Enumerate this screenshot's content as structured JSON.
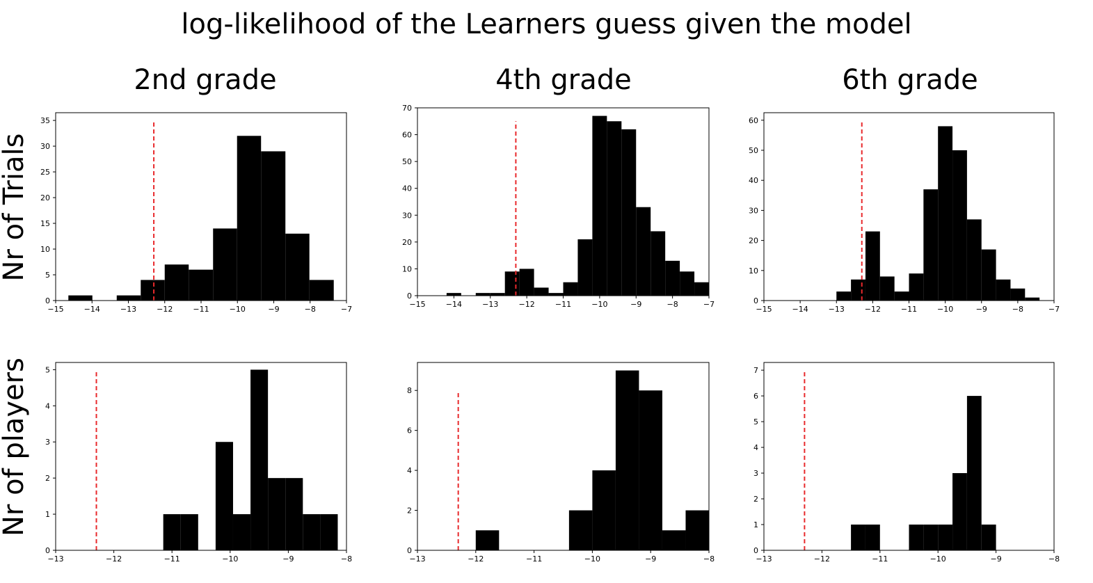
{
  "figure": {
    "title": "log-likelihood of the Learners guess given the model",
    "column_titles": [
      "2nd grade",
      "4th grade",
      "6th grade"
    ],
    "row_labels": [
      "Nr of Trials",
      "Nr of players"
    ],
    "colors": {
      "bars": "#000000",
      "reference_line": "#e8292c"
    }
  },
  "chart_data": [
    {
      "type": "bar",
      "panel": "trials-2nd-grade",
      "column_title": "2nd grade",
      "row_label": "Nr of Trials",
      "xlim": [
        -15,
        -7
      ],
      "ylim": [
        0,
        36.5
      ],
      "xticks": [
        -15,
        -14,
        -13,
        -12,
        -11,
        -10,
        -9,
        -8,
        -7
      ],
      "xtick_labels": [
        "−15",
        "−14",
        "−13",
        "−12",
        "−11",
        "−10",
        "−9",
        "−8",
        "−7"
      ],
      "yticks": [
        0,
        5,
        10,
        15,
        20,
        25,
        30,
        35
      ],
      "yticks_labels": [
        "0",
        "5",
        "10",
        "15",
        "20",
        "25",
        "30",
        "35"
      ],
      "bins": [
        {
          "x0": -14.65,
          "x1": -13.99,
          "value": 1
        },
        {
          "x0": -13.99,
          "x1": -13.32,
          "value": 0
        },
        {
          "x0": -13.32,
          "x1": -12.66,
          "value": 1
        },
        {
          "x0": -12.66,
          "x1": -12.0,
          "value": 4
        },
        {
          "x0": -12.0,
          "x1": -11.34,
          "value": 7
        },
        {
          "x0": -11.34,
          "x1": -10.67,
          "value": 6
        },
        {
          "x0": -10.67,
          "x1": -10.01,
          "value": 14
        },
        {
          "x0": -10.01,
          "x1": -9.35,
          "value": 32
        },
        {
          "x0": -9.35,
          "x1": -8.68,
          "value": 29
        },
        {
          "x0": -8.68,
          "x1": -8.02,
          "value": 13
        },
        {
          "x0": -8.02,
          "x1": -7.35,
          "value": 4
        }
      ],
      "reference_line": {
        "x": -12.3,
        "y_top": 35
      }
    },
    {
      "type": "bar",
      "panel": "trials-4th-grade",
      "column_title": "4th grade",
      "row_label": "Nr of Trials",
      "xlim": [
        -15,
        -7
      ],
      "ylim": [
        0,
        70
      ],
      "xticks": [
        -15,
        -14,
        -13,
        -12,
        -11,
        -10,
        -9,
        -8,
        -7
      ],
      "xtick_labels": [
        "−15",
        "−14",
        "−13",
        "−12",
        "−11",
        "−10",
        "−9",
        "−8",
        "−7"
      ],
      "yticks": [
        0,
        10,
        20,
        30,
        40,
        50,
        60,
        70
      ],
      "yticks_labels": [
        "0",
        "10",
        "20",
        "30",
        "40",
        "50",
        "60",
        "70"
      ],
      "bins": [
        {
          "x0": -14.2,
          "x1": -13.8,
          "value": 1
        },
        {
          "x0": -13.8,
          "x1": -13.4,
          "value": 0
        },
        {
          "x0": -13.4,
          "x1": -13.0,
          "value": 1
        },
        {
          "x0": -13.0,
          "x1": -12.6,
          "value": 1
        },
        {
          "x0": -12.6,
          "x1": -12.2,
          "value": 9
        },
        {
          "x0": -12.2,
          "x1": -11.8,
          "value": 10
        },
        {
          "x0": -11.8,
          "x1": -11.4,
          "value": 3
        },
        {
          "x0": -11.4,
          "x1": -11.0,
          "value": 1
        },
        {
          "x0": -11.0,
          "x1": -10.6,
          "value": 5
        },
        {
          "x0": -10.6,
          "x1": -10.2,
          "value": 21
        },
        {
          "x0": -10.2,
          "x1": -9.8,
          "value": 67
        },
        {
          "x0": -9.8,
          "x1": -9.4,
          "value": 65
        },
        {
          "x0": -9.4,
          "x1": -9.0,
          "value": 62
        },
        {
          "x0": -9.0,
          "x1": -8.6,
          "value": 33
        },
        {
          "x0": -8.6,
          "x1": -8.2,
          "value": 24
        },
        {
          "x0": -8.2,
          "x1": -7.8,
          "value": 13
        },
        {
          "x0": -7.8,
          "x1": -7.4,
          "value": 9
        },
        {
          "x0": -7.4,
          "x1": -7.0,
          "value": 5
        }
      ],
      "reference_line": {
        "x": -12.3,
        "y_top": 65
      }
    },
    {
      "type": "bar",
      "panel": "trials-6th-grade",
      "column_title": "6th grade",
      "row_label": "Nr of Trials",
      "xlim": [
        -15,
        -7
      ],
      "ylim": [
        0,
        62.5
      ],
      "xticks": [
        -15,
        -14,
        -13,
        -12,
        -11,
        -10,
        -9,
        -8,
        -7
      ],
      "xtick_labels": [
        "−15",
        "−14",
        "−13",
        "−12",
        "−11",
        "−10",
        "−9",
        "−8",
        "−7"
      ],
      "yticks": [
        0,
        10,
        20,
        30,
        40,
        50,
        60
      ],
      "yticks_labels": [
        "0",
        "10",
        "20",
        "30",
        "40",
        "50",
        "60"
      ],
      "bins": [
        {
          "x0": -13.0,
          "x1": -12.6,
          "value": 3
        },
        {
          "x0": -12.6,
          "x1": -12.2,
          "value": 7
        },
        {
          "x0": -12.2,
          "x1": -11.8,
          "value": 23
        },
        {
          "x0": -11.8,
          "x1": -11.4,
          "value": 8
        },
        {
          "x0": -11.4,
          "x1": -11.0,
          "value": 3
        },
        {
          "x0": -11.0,
          "x1": -10.6,
          "value": 9
        },
        {
          "x0": -10.6,
          "x1": -10.2,
          "value": 37
        },
        {
          "x0": -10.2,
          "x1": -9.8,
          "value": 58
        },
        {
          "x0": -9.8,
          "x1": -9.4,
          "value": 50
        },
        {
          "x0": -9.4,
          "x1": -9.0,
          "value": 27
        },
        {
          "x0": -9.0,
          "x1": -8.6,
          "value": 17
        },
        {
          "x0": -8.6,
          "x1": -8.2,
          "value": 7
        },
        {
          "x0": -8.2,
          "x1": -7.8,
          "value": 4
        },
        {
          "x0": -7.8,
          "x1": -7.4,
          "value": 1
        }
      ],
      "reference_line": {
        "x": -12.3,
        "y_top": 60
      }
    },
    {
      "type": "bar",
      "panel": "players-2nd-grade",
      "column_title": "2nd grade",
      "row_label": "Nr of players",
      "xlim": [
        -13,
        -8
      ],
      "ylim": [
        0,
        5.2
      ],
      "xticks": [
        -13,
        -12,
        -11,
        -10,
        -9,
        -8
      ],
      "xtick_labels": [
        "−13",
        "−12",
        "−11",
        "−10",
        "−9",
        "−8"
      ],
      "yticks": [
        0,
        1,
        2,
        3,
        4,
        5
      ],
      "yticks_labels": [
        "0",
        "1",
        "2",
        "3",
        "4",
        "5"
      ],
      "bins": [
        {
          "x0": -11.15,
          "x1": -10.85,
          "value": 1
        },
        {
          "x0": -10.85,
          "x1": -10.55,
          "value": 1
        },
        {
          "x0": -10.25,
          "x1": -9.95,
          "value": 3
        },
        {
          "x0": -9.95,
          "x1": -9.65,
          "value": 1
        },
        {
          "x0": -9.65,
          "x1": -9.35,
          "value": 5
        },
        {
          "x0": -9.35,
          "x1": -9.05,
          "value": 2
        },
        {
          "x0": -9.05,
          "x1": -8.75,
          "value": 2
        },
        {
          "x0": -8.75,
          "x1": -8.45,
          "value": 1
        },
        {
          "x0": -8.45,
          "x1": -8.15,
          "value": 1
        }
      ],
      "reference_line": {
        "x": -12.3,
        "y_top": 5
      }
    },
    {
      "type": "bar",
      "panel": "players-4th-grade",
      "column_title": "4th grade",
      "row_label": "Nr of players",
      "xlim": [
        -13,
        -8
      ],
      "ylim": [
        0,
        9.4
      ],
      "xticks": [
        -13,
        -12,
        -11,
        -10,
        -9,
        -8
      ],
      "xtick_labels": [
        "−13",
        "−12",
        "−11",
        "−10",
        "−9",
        "−8"
      ],
      "yticks": [
        0,
        2,
        4,
        6,
        8
      ],
      "yticks_labels": [
        "0",
        "2",
        "4",
        "6",
        "8"
      ],
      "bins": [
        {
          "x0": -12.0,
          "x1": -11.6,
          "value": 1
        },
        {
          "x0": -10.4,
          "x1": -10.0,
          "value": 2
        },
        {
          "x0": -10.0,
          "x1": -9.6,
          "value": 4
        },
        {
          "x0": -9.6,
          "x1": -9.2,
          "value": 9
        },
        {
          "x0": -9.2,
          "x1": -8.8,
          "value": 8
        },
        {
          "x0": -8.8,
          "x1": -8.4,
          "value": 1
        },
        {
          "x0": -8.4,
          "x1": -8.0,
          "value": 2
        }
      ],
      "reference_line": {
        "x": -12.3,
        "y_top": 8
      }
    },
    {
      "type": "bar",
      "panel": "players-6th-grade",
      "column_title": "6th grade",
      "row_label": "Nr of players",
      "xlim": [
        -13,
        -8
      ],
      "ylim": [
        0,
        7.3
      ],
      "xticks": [
        -13,
        -12,
        -11,
        -10,
        -9,
        -8
      ],
      "xtick_labels": [
        "−13",
        "−12",
        "−11",
        "−10",
        "−9",
        "−8"
      ],
      "yticks": [
        0,
        1,
        2,
        3,
        4,
        5,
        6,
        7
      ],
      "yticks_labels": [
        "0",
        "1",
        "2",
        "3",
        "4",
        "5",
        "6",
        "7"
      ],
      "bins": [
        {
          "x0": -11.5,
          "x1": -11.25,
          "value": 1
        },
        {
          "x0": -11.25,
          "x1": -11.0,
          "value": 1
        },
        {
          "x0": -10.5,
          "x1": -10.25,
          "value": 1
        },
        {
          "x0": -10.25,
          "x1": -10.0,
          "value": 1
        },
        {
          "x0": -10.0,
          "x1": -9.75,
          "value": 1
        },
        {
          "x0": -9.75,
          "x1": -9.5,
          "value": 3
        },
        {
          "x0": -9.5,
          "x1": -9.25,
          "value": 6
        },
        {
          "x0": -9.25,
          "x1": -9.0,
          "value": 1
        }
      ],
      "reference_line": {
        "x": -12.3,
        "y_top": 7
      }
    }
  ]
}
